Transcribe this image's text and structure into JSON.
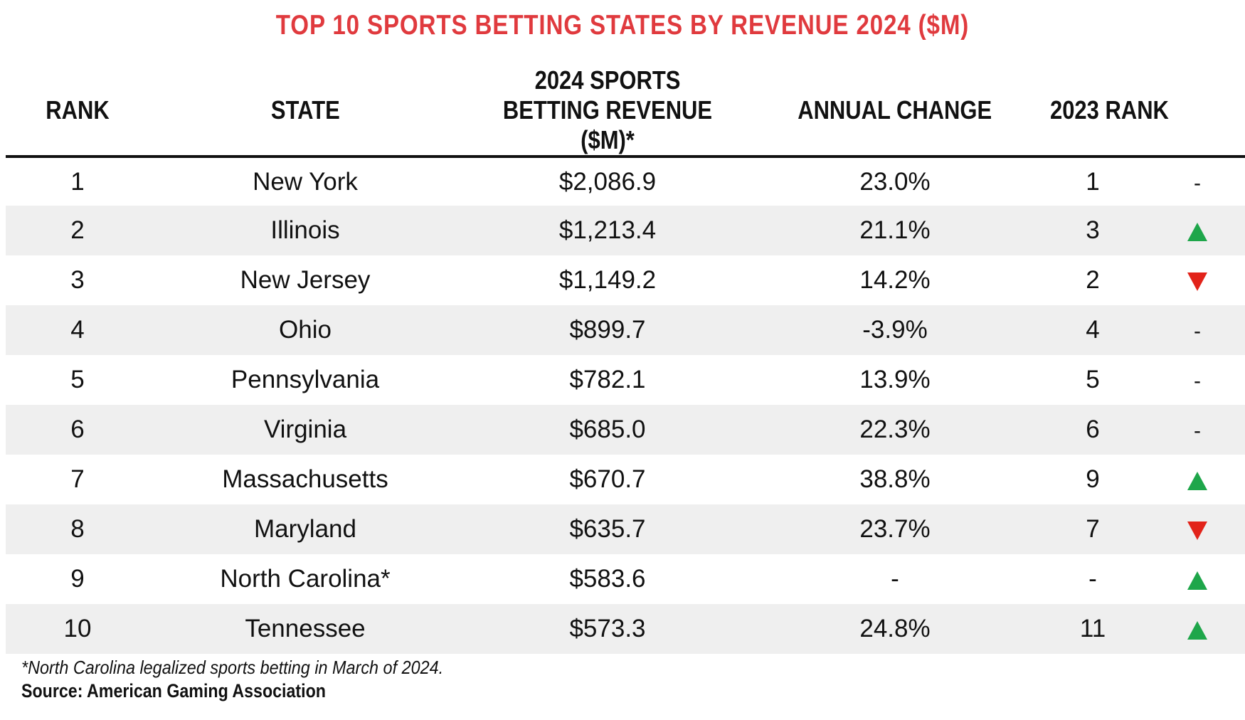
{
  "chart_data": {
    "type": "table",
    "title": "TOP 10 SPORTS BETTING STATES BY REVENUE 2024 ($M)",
    "columns": [
      "RANK",
      "STATE",
      "2024 SPORTS BETTING REVENUE ($M)*",
      "ANNUAL CHANGE",
      "2023 RANK",
      ""
    ],
    "rows": [
      {
        "rank": "1",
        "state": "New York",
        "revenue": "$2,086.9",
        "change": "23.0%",
        "prev_rank": "1",
        "trend": "same"
      },
      {
        "rank": "2",
        "state": "Illinois",
        "revenue": "$1,213.4",
        "change": "21.1%",
        "prev_rank": "3",
        "trend": "up"
      },
      {
        "rank": "3",
        "state": "New Jersey",
        "revenue": "$1,149.2",
        "change": "14.2%",
        "prev_rank": "2",
        "trend": "down"
      },
      {
        "rank": "4",
        "state": "Ohio",
        "revenue": "$899.7",
        "change": "-3.9%",
        "prev_rank": "4",
        "trend": "same"
      },
      {
        "rank": "5",
        "state": "Pennsylvania",
        "revenue": "$782.1",
        "change": "13.9%",
        "prev_rank": "5",
        "trend": "same"
      },
      {
        "rank": "6",
        "state": "Virginia",
        "revenue": "$685.0",
        "change": "22.3%",
        "prev_rank": "6",
        "trend": "same"
      },
      {
        "rank": "7",
        "state": "Massachusetts",
        "revenue": "$670.7",
        "change": "38.8%",
        "prev_rank": "9",
        "trend": "up"
      },
      {
        "rank": "8",
        "state": "Maryland",
        "revenue": "$635.7",
        "change": "23.7%",
        "prev_rank": "7",
        "trend": "down"
      },
      {
        "rank": "9",
        "state": "North Carolina*",
        "revenue": "$583.6",
        "change": "-",
        "prev_rank": "-",
        "trend": "up"
      },
      {
        "rank": "10",
        "state": "Tennessee",
        "revenue": "$573.3",
        "change": "24.8%",
        "prev_rank": "11",
        "trend": "up"
      }
    ],
    "colors": {
      "title": "#e03a3e",
      "up": "#1ea64a",
      "down": "#e2231a",
      "stripe": "#efefef"
    }
  },
  "headers": {
    "rank": "RANK",
    "state": "STATE",
    "revenue": "2024 SPORTS BETTING REVENUE ($M)*",
    "change": "ANNUAL CHANGE",
    "prev_rank": "2023 RANK"
  },
  "trend_symbols": {
    "same": "-"
  },
  "footnote": "*North Carolina legalized sports betting in March of 2024.",
  "source": "Source: American Gaming Association"
}
